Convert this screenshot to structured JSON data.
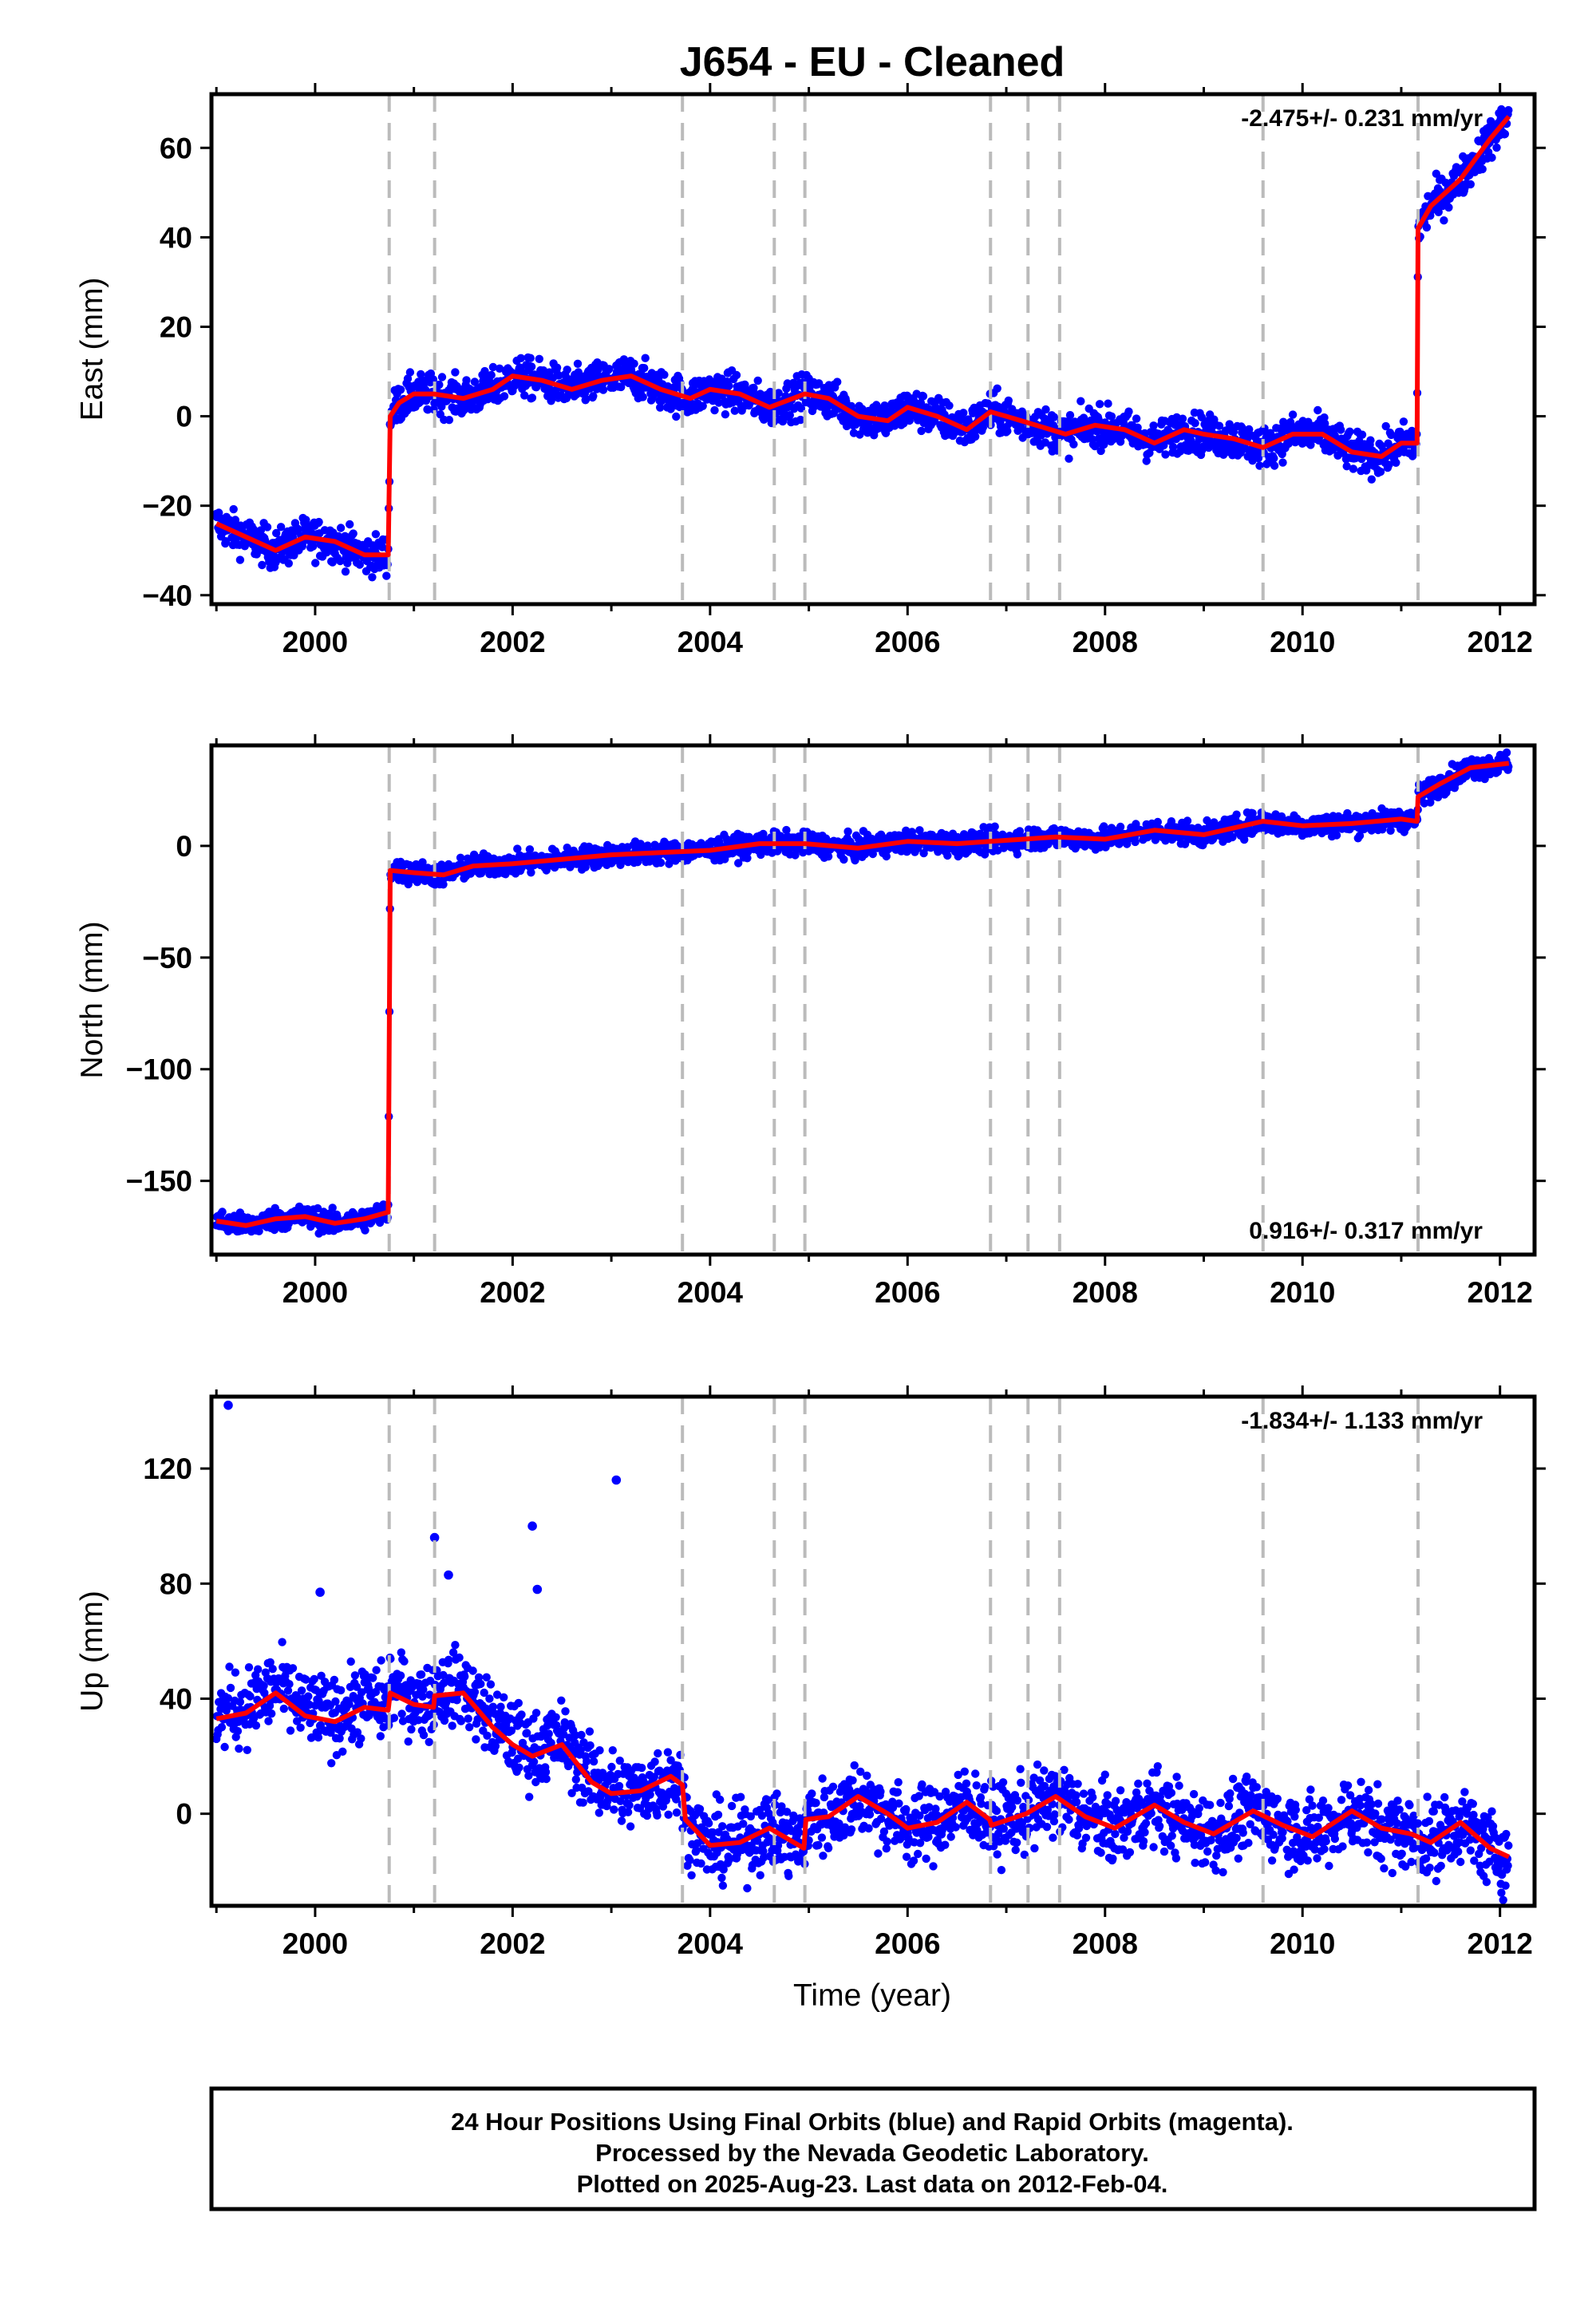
{
  "title": "J654  - EU - Cleaned",
  "xlabel": "Time (year)",
  "xticks": [
    2000,
    2002,
    2004,
    2006,
    2008,
    2010,
    2012
  ],
  "xlim": [
    1998.95,
    2012.35
  ],
  "colors": {
    "data": "#0000ff",
    "model": "#ff0000",
    "events": "#bbbbbb",
    "frame": "#000000"
  },
  "event_lines": [
    2000.75,
    2001.21,
    2003.72,
    2004.65,
    2004.96,
    2006.84,
    2007.22,
    2007.54,
    2009.6,
    2011.17
  ],
  "footer": {
    "line1": "24 Hour Positions Using Final Orbits (blue) and Rapid Orbits (magenta).",
    "line2": "Processed by the Nevada Geodetic Laboratory.",
    "line3": "Plotted on 2025-Aug-23. Last data on 2012-Feb-04."
  },
  "chart_data": [
    {
      "type": "scatter",
      "component": "east",
      "ylabel": "East (mm)",
      "yticks": [
        -40,
        -20,
        0,
        20,
        40,
        60
      ],
      "ylim": [
        -42,
        72
      ],
      "rate_text": "-2.475+/- 0.231 mm/yr",
      "rate_position": "top-right",
      "data_start": 1999.0,
      "data_end": 2012.09,
      "scatter_noise_mm": 2.2,
      "model_line": {
        "x": [
          1999.0,
          1999.3,
          1999.6,
          1999.9,
          2000.2,
          2000.5,
          2000.74,
          2000.76,
          2000.85,
          2001.0,
          2001.2,
          2001.5,
          2001.8,
          2002.0,
          2002.3,
          2002.6,
          2002.9,
          2003.2,
          2003.5,
          2003.8,
          2004.0,
          2004.3,
          2004.6,
          2004.96,
          2005.2,
          2005.5,
          2005.8,
          2006.0,
          2006.3,
          2006.6,
          2006.84,
          2007.0,
          2007.3,
          2007.6,
          2007.9,
          2008.2,
          2008.5,
          2008.8,
          2009.0,
          2009.3,
          2009.6,
          2009.9,
          2010.2,
          2010.5,
          2010.8,
          2011.0,
          2011.16,
          2011.17,
          2011.3,
          2011.6,
          2011.9,
          2012.09
        ],
        "y": [
          -24,
          -27,
          -30,
          -27,
          -28,
          -31,
          -31,
          0,
          3,
          5,
          5,
          4,
          6,
          9,
          8,
          6,
          8,
          9,
          6,
          4,
          6,
          5,
          2,
          5,
          4,
          0,
          -1,
          2,
          0,
          -3,
          1,
          0,
          -2,
          -4,
          -2,
          -3,
          -6,
          -3,
          -4,
          -5,
          -7,
          -4,
          -4,
          -8,
          -9,
          -6,
          -6,
          42,
          47,
          53,
          62,
          67
        ]
      }
    },
    {
      "type": "scatter",
      "component": "north",
      "ylabel": "North (mm)",
      "yticks": [
        -150,
        -100,
        -50,
        0
      ],
      "ylim": [
        -183,
        45
      ],
      "rate_text": "0.916+/- 0.317 mm/yr",
      "rate_position": "bottom-right",
      "data_start": 1999.0,
      "data_end": 2012.09,
      "scatter_noise_mm": 2.5,
      "model_line": {
        "x": [
          1999.0,
          1999.3,
          1999.6,
          1999.9,
          2000.2,
          2000.5,
          2000.74,
          2000.76,
          2001.0,
          2001.3,
          2001.6,
          2002.0,
          2002.5,
          2003.0,
          2003.5,
          2004.0,
          2004.5,
          2004.96,
          2005.5,
          2006.0,
          2006.5,
          2006.84,
          2007.5,
          2008.0,
          2008.5,
          2009.0,
          2009.6,
          2010.0,
          2010.5,
          2011.0,
          2011.16,
          2011.17,
          2011.4,
          2011.7,
          2012.09
        ],
        "y": [
          -168,
          -170,
          -167,
          -166,
          -169,
          -167,
          -164,
          -11,
          -12,
          -13,
          -9,
          -8,
          -6,
          -4,
          -3,
          -2,
          1,
          1,
          -1,
          2,
          1,
          2,
          4,
          3,
          7,
          5,
          11,
          9,
          10,
          12,
          11,
          22,
          28,
          35,
          37
        ]
      }
    },
    {
      "type": "scatter",
      "component": "up",
      "ylabel": "Up (mm)",
      "yticks": [
        0,
        40,
        80,
        120
      ],
      "ylim": [
        -32,
        145
      ],
      "rate_text": "-1.834+/- 1.133 mm/yr",
      "rate_position": "top-right",
      "data_start": 1999.0,
      "data_end": 2012.09,
      "data_gap": [
        2003.1,
        2003.05
      ],
      "scatter_noise_mm": 6.5,
      "outliers": {
        "x": [
          1999.12,
          2001.21,
          2001.35,
          2002.2,
          2002.25,
          2003.05,
          2000.05
        ],
        "y": [
          142,
          96,
          83,
          100,
          78,
          116,
          77
        ]
      },
      "model_line": {
        "x": [
          1999.0,
          1999.3,
          1999.6,
          1999.9,
          2000.2,
          2000.5,
          2000.74,
          2000.76,
          2001.0,
          2001.2,
          2001.21,
          2001.5,
          2001.8,
          2002.0,
          2002.2,
          2002.5,
          2002.8,
          2003.0,
          2003.3,
          2003.6,
          2003.72,
          2003.75,
          2004.0,
          2004.3,
          2004.6,
          2004.95,
          2004.97,
          2005.2,
          2005.5,
          2005.8,
          2006.0,
          2006.3,
          2006.6,
          2006.83,
          2006.85,
          2007.2,
          2007.5,
          2007.8,
          2008.1,
          2008.5,
          2008.8,
          2009.1,
          2009.5,
          2009.8,
          2010.1,
          2010.5,
          2010.8,
          2011.1,
          2011.3,
          2011.6,
          2011.9,
          2012.09
        ],
        "y": [
          33,
          35,
          42,
          34,
          32,
          37,
          36,
          42,
          38,
          37,
          41,
          42,
          30,
          24,
          20,
          24,
          11,
          7,
          8,
          13,
          10,
          -2,
          -11,
          -10,
          -5,
          -12,
          -2,
          -1,
          6,
          0,
          -5,
          -3,
          4,
          -2,
          -4,
          0,
          6,
          -1,
          -5,
          3,
          -3,
          -7,
          1,
          -4,
          -8,
          1,
          -5,
          -7,
          -10,
          -3,
          -12,
          -15
        ]
      }
    }
  ]
}
